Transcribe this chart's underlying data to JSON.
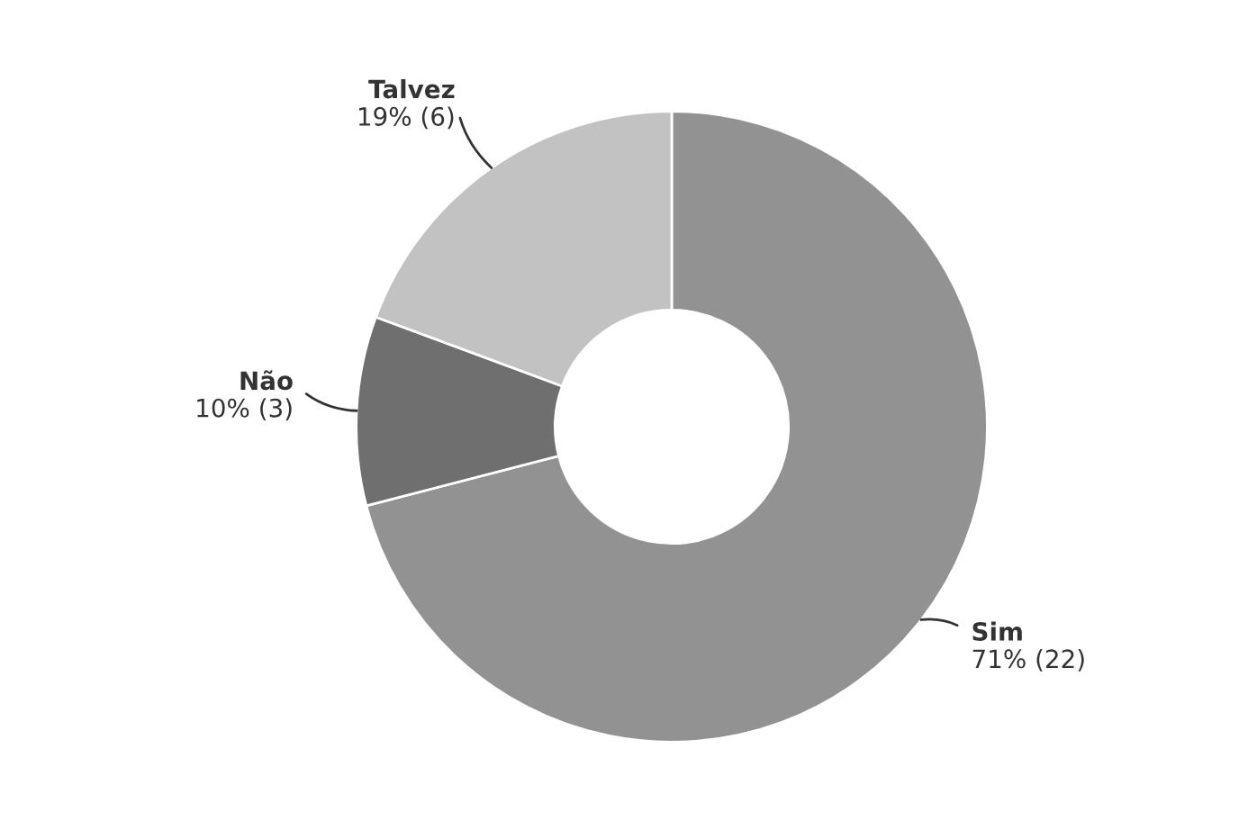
{
  "chart_data": {
    "type": "donut",
    "categories": [
      "Sim",
      "Não",
      "Talvez"
    ],
    "values": [
      22,
      3,
      6
    ],
    "value_labels": [
      "71% (22)",
      "10% (3)",
      "19% (6)"
    ],
    "colors": [
      "#929292",
      "#6f6f6f",
      "#c2c2c2"
    ]
  }
}
